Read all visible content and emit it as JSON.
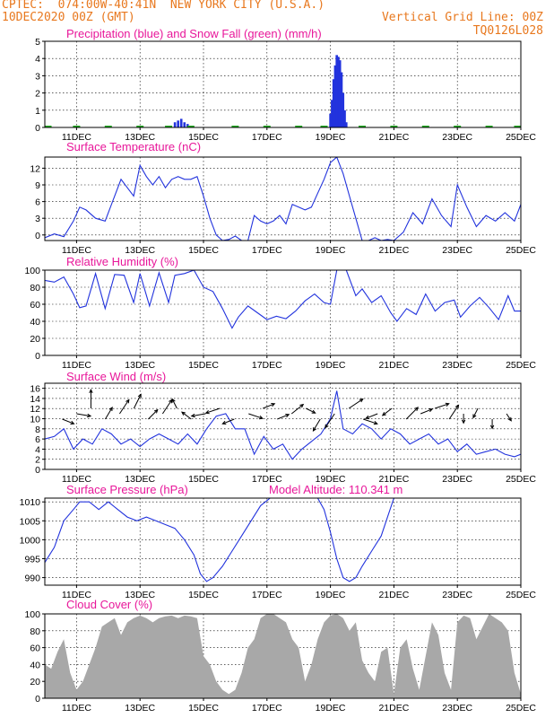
{
  "header": {
    "line1": "CPTEC:  074:00W-40:41N  NEW YORK CITY (U.S.A.)",
    "line2_left": "10DEC2020 00Z (GMT)",
    "line2_right": "Vertical Grid Line: 00Z",
    "line3_right": "TQ0126L028"
  },
  "colors": {
    "header": "#e8781e",
    "title": "#e8179a",
    "line": "#2233dd",
    "snow": "#22aa22",
    "cloud": "#a8a8a8"
  },
  "chart_data": [
    {
      "type": "bar",
      "title": "Precipitation (blue) and Snow Fall (green) (mm/h)",
      "ylim": [
        0,
        5
      ],
      "yticks": [
        0,
        1,
        2,
        3,
        4,
        5
      ],
      "xlim": [
        10,
        25
      ],
      "xticks": [
        "11DEC",
        "13DEC",
        "15DEC",
        "17DEC",
        "19DEC",
        "21DEC",
        "23DEC",
        "25DEC"
      ],
      "grid": true,
      "series": [
        {
          "name": "Precipitation",
          "color": "#2233dd",
          "x": [
            14.1,
            14.2,
            14.3,
            14.4,
            14.5,
            19.0,
            19.05,
            19.1,
            19.15,
            19.2,
            19.25,
            19.3,
            19.35,
            19.4,
            19.45,
            19.5
          ],
          "values": [
            0.3,
            0.4,
            0.5,
            0.3,
            0.2,
            0.8,
            1.6,
            2.8,
            3.6,
            4.2,
            4.1,
            3.9,
            3.2,
            2.0,
            1.0,
            0.3
          ]
        },
        {
          "name": "Snow Fall",
          "color": "#22aa22",
          "x": [
            10.1,
            11.0,
            12.0,
            13.0,
            13.9,
            14.6,
            16.0,
            17.0,
            18.0,
            18.8,
            20.0,
            21.0,
            22.0,
            23.0,
            24.0,
            24.9
          ],
          "values": [
            0.05,
            0.05,
            0.05,
            0.05,
            0.05,
            0.05,
            0.05,
            0.05,
            0.05,
            0.05,
            0.05,
            0.05,
            0.05,
            0.05,
            0.05,
            0.05
          ]
        }
      ]
    },
    {
      "type": "line",
      "title": "Surface Temperature (nC)",
      "ylim": [
        -1,
        14
      ],
      "yticks": [
        0,
        3,
        6,
        9,
        12
      ],
      "xlim": [
        10,
        25
      ],
      "xticks": [
        "11DEC",
        "13DEC",
        "15DEC",
        "17DEC",
        "19DEC",
        "21DEC",
        "23DEC",
        "25DEC"
      ],
      "grid": true,
      "series": [
        {
          "name": "Temperature",
          "color": "#2233dd",
          "x": [
            10,
            10.3,
            10.6,
            10.9,
            11.1,
            11.3,
            11.6,
            11.9,
            12.2,
            12.4,
            12.6,
            12.8,
            13.0,
            13.2,
            13.4,
            13.6,
            13.8,
            14.0,
            14.2,
            14.4,
            14.6,
            14.8,
            15.0,
            15.2,
            15.4,
            15.6,
            15.8,
            16.0,
            16.2,
            16.4,
            16.6,
            16.8,
            17.0,
            17.2,
            17.4,
            17.6,
            17.8,
            18.0,
            18.2,
            18.4,
            18.6,
            18.8,
            19.0,
            19.2,
            19.4,
            19.6,
            19.8,
            20.0,
            20.2,
            20.4,
            20.6,
            20.8,
            21.0,
            21.3,
            21.6,
            21.9,
            22.2,
            22.5,
            22.8,
            23.0,
            23.3,
            23.6,
            23.9,
            24.2,
            24.5,
            24.8,
            25.0
          ],
          "values": [
            -0.5,
            0.2,
            -0.3,
            2.5,
            5.0,
            4.5,
            3.0,
            2.5,
            7.0,
            10.0,
            8.5,
            7.0,
            12.5,
            10.5,
            9.0,
            10.5,
            8.5,
            10.0,
            10.5,
            10.0,
            10.0,
            10.5,
            7.0,
            3.0,
            0.0,
            -1.0,
            -0.8,
            -0.2,
            -1.0,
            -1.0,
            3.5,
            2.5,
            2.0,
            2.5,
            3.5,
            2.0,
            5.5,
            5.0,
            4.5,
            5.0,
            7.5,
            10.0,
            13.0,
            14.0,
            11.0,
            7.0,
            3.0,
            -1.0,
            -1.0,
            -0.5,
            -1.0,
            -0.8,
            -1.0,
            0.5,
            4.0,
            2.0,
            6.5,
            3.5,
            1.5,
            9.0,
            5.0,
            1.5,
            3.5,
            2.5,
            4.0,
            2.5,
            5.5
          ]
        }
      ]
    },
    {
      "type": "line",
      "title": "Relative Humidity (%)",
      "ylim": [
        0,
        100
      ],
      "yticks": [
        0,
        20,
        40,
        60,
        80,
        100
      ],
      "xlim": [
        10,
        25
      ],
      "xticks": [
        "11DEC",
        "13DEC",
        "15DEC",
        "17DEC",
        "19DEC",
        "21DEC",
        "23DEC",
        "25DEC"
      ],
      "grid": true,
      "series": [
        {
          "name": "Relative Humidity",
          "color": "#2233dd",
          "x": [
            10,
            10.3,
            10.6,
            10.9,
            11.1,
            11.3,
            11.6,
            11.9,
            12.2,
            12.5,
            12.8,
            13.0,
            13.3,
            13.6,
            13.9,
            14.1,
            14.4,
            14.7,
            15.0,
            15.3,
            15.6,
            15.9,
            16.1,
            16.4,
            16.7,
            17.0,
            17.3,
            17.6,
            17.9,
            18.2,
            18.5,
            18.8,
            19.0,
            19.2,
            19.5,
            19.8,
            20.0,
            20.3,
            20.6,
            20.9,
            21.1,
            21.4,
            21.7,
            22.0,
            22.3,
            22.6,
            22.9,
            23.1,
            23.4,
            23.7,
            24.0,
            24.3,
            24.6,
            24.8,
            25.0
          ],
          "values": [
            88,
            86,
            92,
            72,
            56,
            58,
            96,
            55,
            95,
            94,
            62,
            96,
            58,
            97,
            62,
            94,
            96,
            100,
            80,
            75,
            55,
            32,
            45,
            58,
            50,
            42,
            46,
            43,
            52,
            64,
            72,
            62,
            60,
            100,
            100,
            70,
            78,
            62,
            70,
            50,
            40,
            55,
            48,
            72,
            52,
            62,
            65,
            45,
            58,
            68,
            56,
            42,
            70,
            52,
            52
          ]
        }
      ]
    },
    {
      "type": "line",
      "title": "Surface Wind (m/s)",
      "ylim": [
        0,
        17
      ],
      "yticks": [
        0,
        2,
        4,
        6,
        8,
        10,
        12,
        14,
        16
      ],
      "xlim": [
        10,
        25
      ],
      "xticks": [
        "11DEC",
        "13DEC",
        "15DEC",
        "17DEC",
        "19DEC",
        "21DEC",
        "23DEC",
        "25DEC"
      ],
      "grid": true,
      "series": [
        {
          "name": "Wind Speed",
          "color": "#2233dd",
          "x": [
            10,
            10.3,
            10.6,
            10.9,
            11.2,
            11.5,
            11.8,
            12.1,
            12.4,
            12.7,
            13.0,
            13.3,
            13.6,
            13.9,
            14.2,
            14.5,
            14.8,
            15.1,
            15.4,
            15.7,
            16.0,
            16.3,
            16.6,
            16.9,
            17.2,
            17.5,
            17.8,
            18.1,
            18.4,
            18.7,
            19.0,
            19.2,
            19.4,
            19.7,
            20.0,
            20.3,
            20.6,
            20.9,
            21.2,
            21.5,
            21.8,
            22.1,
            22.4,
            22.7,
            23.0,
            23.3,
            23.6,
            23.9,
            24.2,
            24.5,
            24.8,
            25.0
          ],
          "values": [
            6,
            6.5,
            8,
            4,
            6,
            5,
            8,
            7,
            5,
            6,
            4.5,
            6,
            7,
            6,
            5,
            7,
            5,
            8,
            10.5,
            11,
            8,
            8,
            3,
            6.5,
            4,
            5,
            2,
            4,
            5.5,
            7,
            10,
            15.5,
            8,
            7,
            9,
            8,
            6,
            8,
            7,
            5,
            6,
            7,
            5,
            6,
            3.5,
            5,
            3,
            3.5,
            4,
            3,
            2.5,
            3
          ]
        }
      ],
      "wind_arrows_uv": [
        [
          5,
          -2
        ],
        [
          6,
          -1
        ],
        [
          0,
          8
        ],
        [
          3,
          5
        ],
        [
          4,
          6
        ],
        [
          3,
          6
        ],
        [
          4,
          4
        ],
        [
          4,
          6
        ],
        [
          -2,
          4
        ],
        [
          -4,
          3
        ],
        [
          -6,
          -1
        ],
        [
          -6,
          -2
        ],
        [
          -5,
          -2
        ],
        [
          6,
          -2
        ],
        [
          5,
          2
        ],
        [
          5,
          2
        ],
        [
          5,
          4
        ],
        [
          4,
          -2
        ],
        [
          -3,
          -5
        ],
        [
          -4,
          -6
        ],
        [
          6,
          4
        ],
        [
          6,
          -2
        ],
        [
          -5,
          -2
        ],
        [
          -4,
          -3
        ],
        [
          5,
          5
        ],
        [
          5,
          2
        ],
        [
          6,
          2
        ],
        [
          4,
          6
        ],
        [
          0,
          -4
        ],
        [
          -2,
          -4
        ],
        [
          0,
          -4
        ],
        [
          2,
          -3
        ]
      ]
    },
    {
      "type": "line",
      "title": "Surface Pressure (hPa)",
      "annotation": "Model Altitude: 110.341 m",
      "ylim": [
        988,
        1011
      ],
      "yticks": [
        990,
        995,
        1000,
        1005,
        1010
      ],
      "xlim": [
        10,
        25
      ],
      "xticks": [
        "11DEC",
        "13DEC",
        "15DEC",
        "17DEC",
        "19DEC",
        "21DEC",
        "23DEC",
        "25DEC"
      ],
      "grid": true,
      "series": [
        {
          "name": "Pressure",
          "color": "#2233dd",
          "x": [
            10,
            10.3,
            10.6,
            10.9,
            11.1,
            11.4,
            11.7,
            12.0,
            12.3,
            12.6,
            12.9,
            13.2,
            13.5,
            13.8,
            14.1,
            14.4,
            14.7,
            14.9,
            15.1,
            15.3,
            15.6,
            15.9,
            16.2,
            16.5,
            16.8,
            17.1,
            17.4,
            17.7,
            18.0,
            18.3,
            18.6,
            18.8,
            19.0,
            19.2,
            19.4,
            19.6,
            19.8,
            20.0,
            20.3,
            20.6,
            20.8,
            21.0
          ],
          "values": [
            994,
            998,
            1005,
            1008,
            1010,
            1010,
            1008,
            1010,
            1008,
            1006,
            1005,
            1006,
            1005,
            1004,
            1003,
            1000,
            996,
            991,
            989,
            990,
            993,
            997,
            1001,
            1005,
            1009,
            1011,
            1011,
            1011,
            1011,
            1011,
            1011,
            1008,
            1002,
            995,
            990,
            989,
            990,
            993,
            997,
            1001,
            1006,
            1011
          ]
        }
      ]
    },
    {
      "type": "area",
      "title": "Cloud Cover (%)",
      "ylim": [
        0,
        100
      ],
      "yticks": [
        0,
        20,
        40,
        60,
        80,
        100
      ],
      "xlim": [
        10,
        25
      ],
      "xticks": [
        "11DEC",
        "13DEC",
        "15DEC",
        "17DEC",
        "19DEC",
        "21DEC",
        "23DEC",
        "25DEC"
      ],
      "grid": true,
      "series": [
        {
          "name": "Cloud Cover",
          "color": "#a8a8a8",
          "x": [
            10,
            10.2,
            10.4,
            10.6,
            10.8,
            11.0,
            11.2,
            11.4,
            11.6,
            11.8,
            12.0,
            12.2,
            12.4,
            12.6,
            12.8,
            13.0,
            13.2,
            13.4,
            13.6,
            13.8,
            14.0,
            14.2,
            14.4,
            14.6,
            14.8,
            15.0,
            15.2,
            15.4,
            15.6,
            15.8,
            16.0,
            16.2,
            16.4,
            16.6,
            16.8,
            17.0,
            17.2,
            17.4,
            17.6,
            17.8,
            18.0,
            18.2,
            18.4,
            18.6,
            18.8,
            19.0,
            19.2,
            19.4,
            19.6,
            19.8,
            20.0,
            20.2,
            20.4,
            20.6,
            20.8,
            21.0,
            21.2,
            21.4,
            21.6,
            21.8,
            22.0,
            22.2,
            22.4,
            22.6,
            22.8,
            23.0,
            23.2,
            23.4,
            23.6,
            23.8,
            24.0,
            24.2,
            24.4,
            24.6,
            24.8,
            25.0
          ],
          "values": [
            40,
            35,
            55,
            70,
            30,
            10,
            20,
            40,
            60,
            85,
            90,
            95,
            75,
            90,
            95,
            98,
            95,
            90,
            95,
            97,
            98,
            95,
            98,
            97,
            95,
            50,
            40,
            20,
            10,
            5,
            10,
            30,
            60,
            70,
            95,
            100,
            100,
            95,
            90,
            70,
            60,
            20,
            40,
            70,
            90,
            98,
            100,
            95,
            80,
            90,
            45,
            30,
            20,
            55,
            60,
            5,
            60,
            70,
            35,
            10,
            50,
            90,
            75,
            30,
            10,
            90,
            98,
            95,
            70,
            85,
            100,
            95,
            90,
            80,
            30,
            5
          ]
        }
      ]
    }
  ]
}
